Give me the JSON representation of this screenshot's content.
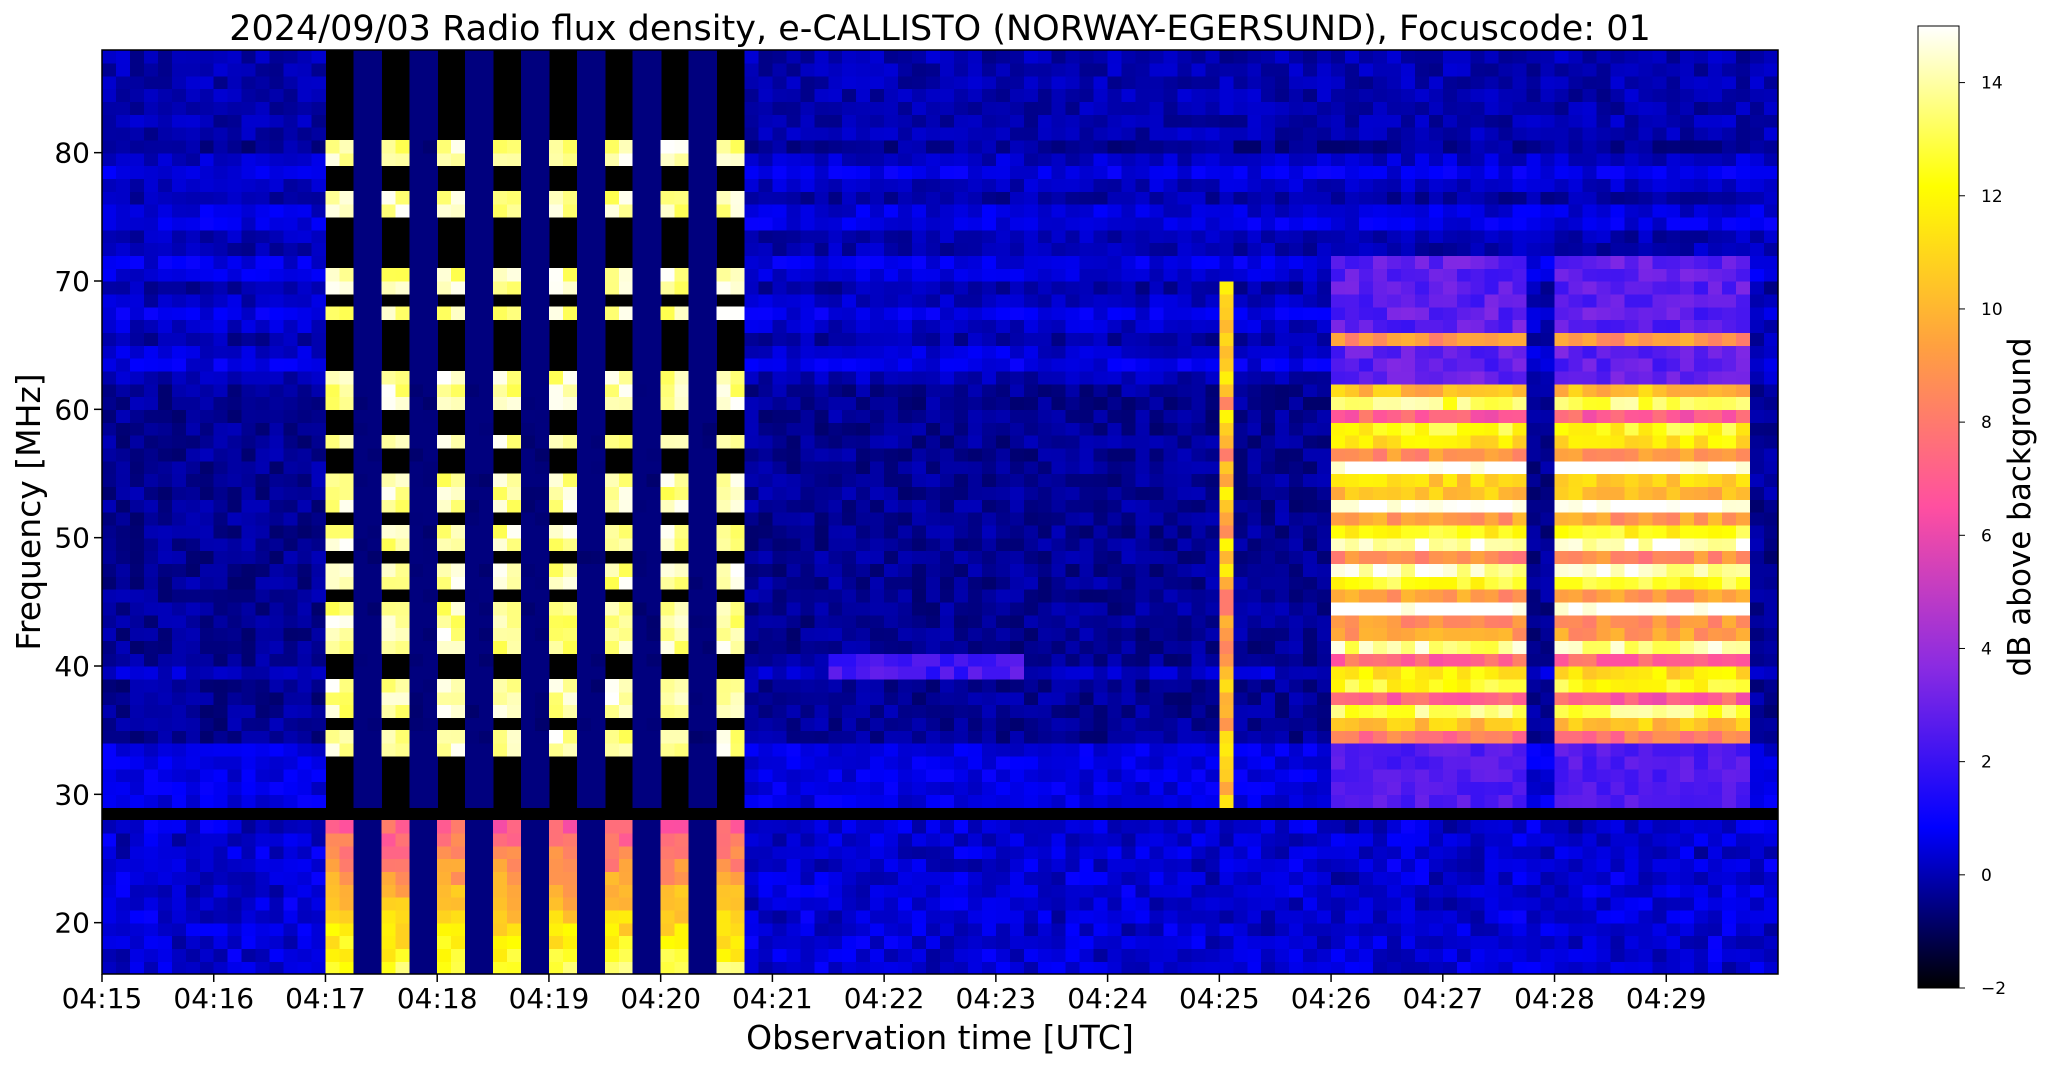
{
  "chart_data": {
    "type": "heatmap",
    "title": "2024/09/03  Radio flux density, e-CALLISTO (NORWAY-EGERSUND), Focuscode: 01",
    "xlabel": "Observation time [UTC]",
    "ylabel": "Frequency [MHz]",
    "colorbar_label": "dB above background",
    "x_range_minutes": [
      0,
      15
    ],
    "x_ticks": [
      {
        "t": 0,
        "label": "04:15"
      },
      {
        "t": 1,
        "label": "04:16"
      },
      {
        "t": 2,
        "label": "04:17"
      },
      {
        "t": 3,
        "label": "04:18"
      },
      {
        "t": 4,
        "label": "04:19"
      },
      {
        "t": 5,
        "label": "04:20"
      },
      {
        "t": 6,
        "label": "04:21"
      },
      {
        "t": 7,
        "label": "04:22"
      },
      {
        "t": 8,
        "label": "04:23"
      },
      {
        "t": 9,
        "label": "04:24"
      },
      {
        "t": 10,
        "label": "04:25"
      },
      {
        "t": 11,
        "label": "04:26"
      },
      {
        "t": 12,
        "label": "04:27"
      },
      {
        "t": 13,
        "label": "04:28"
      },
      {
        "t": 14,
        "label": "04:29"
      }
    ],
    "y_range_mhz": [
      16,
      88
    ],
    "y_ticks": [
      20,
      30,
      40,
      50,
      60,
      70,
      80
    ],
    "colorbar_range_db": [
      -2,
      15
    ],
    "colorbar_ticks": [
      -2,
      0,
      2,
      4,
      6,
      8,
      10,
      12,
      14
    ],
    "colormap": "gnuplot2",
    "colormap_stops": [
      "#000000",
      "#0000ff",
      "#8a2be2",
      "#ff4fa0",
      "#ffa040",
      "#ffff00",
      "#ffffff"
    ],
    "features": [
      {
        "name": "calibration pulses",
        "t_start": 2.0,
        "t_end": 5.7,
        "count": 8,
        "peak_db": 15
      },
      {
        "name": "radio burst",
        "t_start": 11.0,
        "t_end": 14.8,
        "f_range": [
          34,
          66
        ],
        "peak_db": 14
      },
      {
        "name": "spike",
        "t": 10.05,
        "f_range": [
          29,
          70
        ]
      }
    ]
  }
}
